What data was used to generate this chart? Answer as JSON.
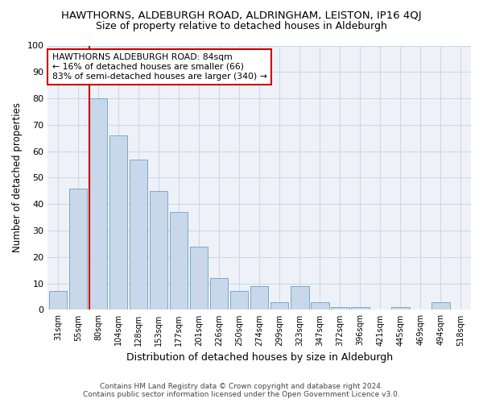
{
  "title": "HAWTHORNS, ALDEBURGH ROAD, ALDRINGHAM, LEISTON, IP16 4QJ",
  "subtitle": "Size of property relative to detached houses in Aldeburgh",
  "xlabel": "Distribution of detached houses by size in Aldeburgh",
  "ylabel": "Number of detached properties",
  "bar_color": "#c8d8ea",
  "bar_edge_color": "#7aaac8",
  "categories": [
    "31sqm",
    "55sqm",
    "80sqm",
    "104sqm",
    "128sqm",
    "153sqm",
    "177sqm",
    "201sqm",
    "226sqm",
    "250sqm",
    "274sqm",
    "299sqm",
    "323sqm",
    "347sqm",
    "372sqm",
    "396sqm",
    "421sqm",
    "445sqm",
    "469sqm",
    "494sqm",
    "518sqm"
  ],
  "values": [
    7,
    46,
    80,
    66,
    57,
    45,
    37,
    24,
    12,
    7,
    9,
    3,
    9,
    3,
    1,
    1,
    0,
    1,
    0,
    3,
    0
  ],
  "ylim": [
    0,
    100
  ],
  "yticks": [
    0,
    10,
    20,
    30,
    40,
    50,
    60,
    70,
    80,
    90,
    100
  ],
  "vline_x_idx": 2,
  "vline_color": "#cc0000",
  "annotation_line1": "HAWTHORNS ALDEBURGH ROAD: 84sqm",
  "annotation_line2": "← 16% of detached houses are smaller (66)",
  "annotation_line3": "83% of semi-detached houses are larger (340) →",
  "annotation_box_facecolor": "#ffffff",
  "annotation_box_edgecolor": "#cc0000",
  "footer_line1": "Contains HM Land Registry data © Crown copyright and database right 2024.",
  "footer_line2": "Contains public sector information licensed under the Open Government Licence v3.0.",
  "grid_color": "#cdd8e8",
  "plot_bg_color": "#eef2f8"
}
